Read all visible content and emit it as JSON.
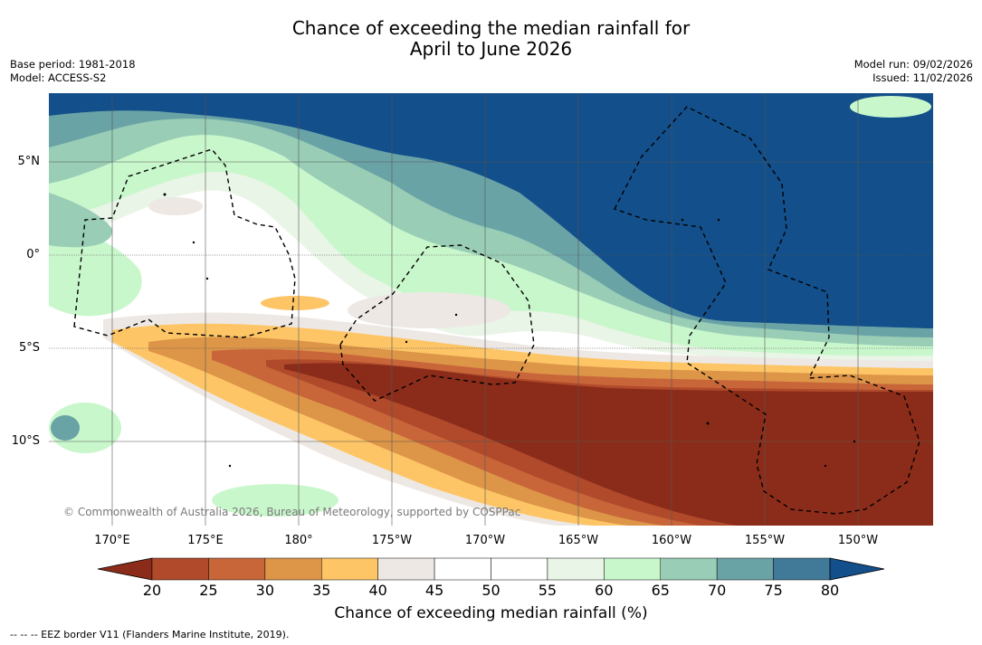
{
  "title": {
    "line1": "Chance of exceeding the median rainfall for",
    "line2": "April to June 2026"
  },
  "meta": {
    "base_period": "Base period: 1981-2018",
    "model": "Model: ACCESS-S2",
    "model_run": "Model run: 09/02/2026",
    "issued": "Issued: 11/02/2026"
  },
  "map": {
    "lat_labels": [
      "5°N",
      "0°",
      "5°S",
      "10°S"
    ],
    "lon_labels": [
      "170°E",
      "175°E",
      "180°",
      "175°W",
      "170°W",
      "165°W",
      "160°W",
      "155°W",
      "150°W"
    ],
    "copyright": "© Commonwealth of Australia 2026, Bureau of Meteorology, supported by COSPPac"
  },
  "colorbar": {
    "ticks": [
      "20",
      "25",
      "30",
      "35",
      "40",
      "45",
      "50",
      "55",
      "60",
      "65",
      "70",
      "75",
      "80"
    ],
    "colors": [
      "#8b2c1a",
      "#b04a2a",
      "#c8663a",
      "#dd9548",
      "#fdc566",
      "#ede8e4",
      "#ffffff",
      "#ffffff",
      "#e9f5e6",
      "#c9f7cc",
      "#99cdb6",
      "#6aa3a6",
      "#407a98",
      "#134f8a"
    ],
    "label": "Chance of exceeding median rainfall (%)"
  },
  "footnote": "--  --  -- EEZ border V11 (Flanders Marine Institute, 2019)."
}
